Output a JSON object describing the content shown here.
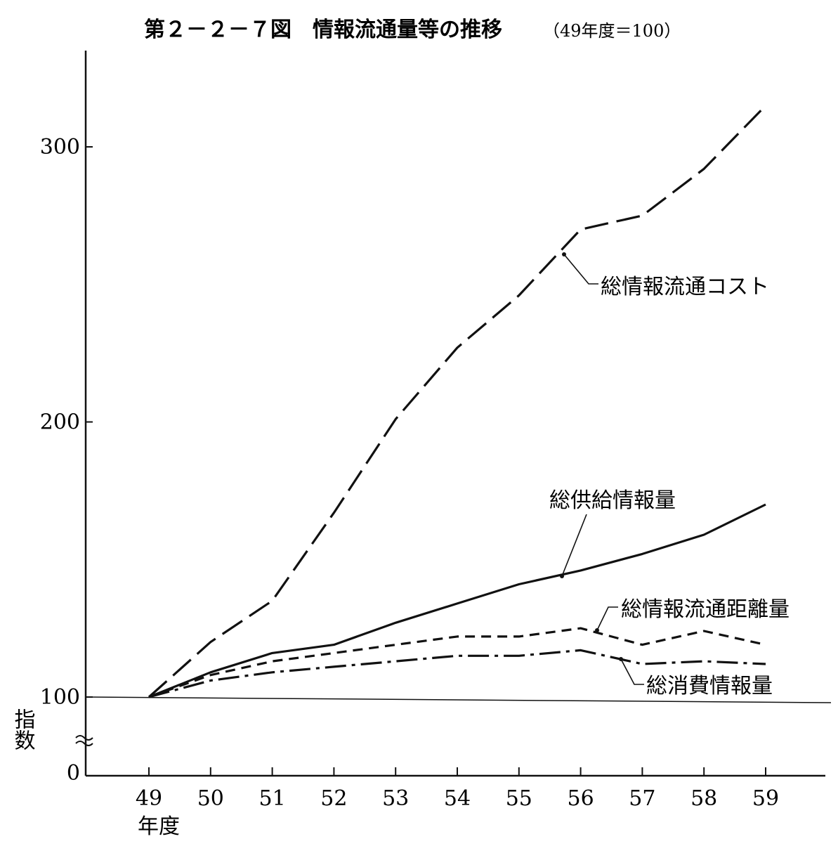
{
  "chart_data": {
    "type": "line",
    "title": "第２－２－７図　情報流通量等の推移",
    "subtitle": "（49年度＝100）",
    "ylabel": "指数",
    "xlabel": "年度",
    "ylim": [
      0,
      320
    ],
    "y_axis_break": "between 0 and 100",
    "y_ticks": [
      {
        "value": 0,
        "label": "0"
      },
      {
        "value": 100,
        "label": "100"
      },
      {
        "value": 200,
        "label": "200"
      },
      {
        "value": 300,
        "label": "300"
      }
    ],
    "categories": [
      "49",
      "50",
      "51",
      "52",
      "53",
      "54",
      "55",
      "56",
      "57",
      "58",
      "59"
    ],
    "grid": false,
    "legend": "inline labels with leader arrows",
    "series": [
      {
        "name": "総情報流通コスト",
        "style": "long-dash",
        "values": [
          100,
          120,
          135,
          167,
          201,
          227,
          246,
          270,
          275,
          292,
          315
        ]
      },
      {
        "name": "総供給情報量",
        "style": "solid",
        "values": [
          100,
          109,
          116,
          119,
          127,
          134,
          141,
          146,
          152,
          159,
          170
        ]
      },
      {
        "name": "総情報流通距離量",
        "style": "short-dash",
        "values": [
          100,
          108,
          113,
          116,
          119,
          122,
          122,
          125,
          119,
          124,
          119
        ]
      },
      {
        "name": "総消費情報量",
        "style": "dash-dot",
        "values": [
          100,
          106,
          109,
          111,
          113,
          115,
          115,
          117,
          112,
          113,
          112
        ]
      }
    ]
  }
}
